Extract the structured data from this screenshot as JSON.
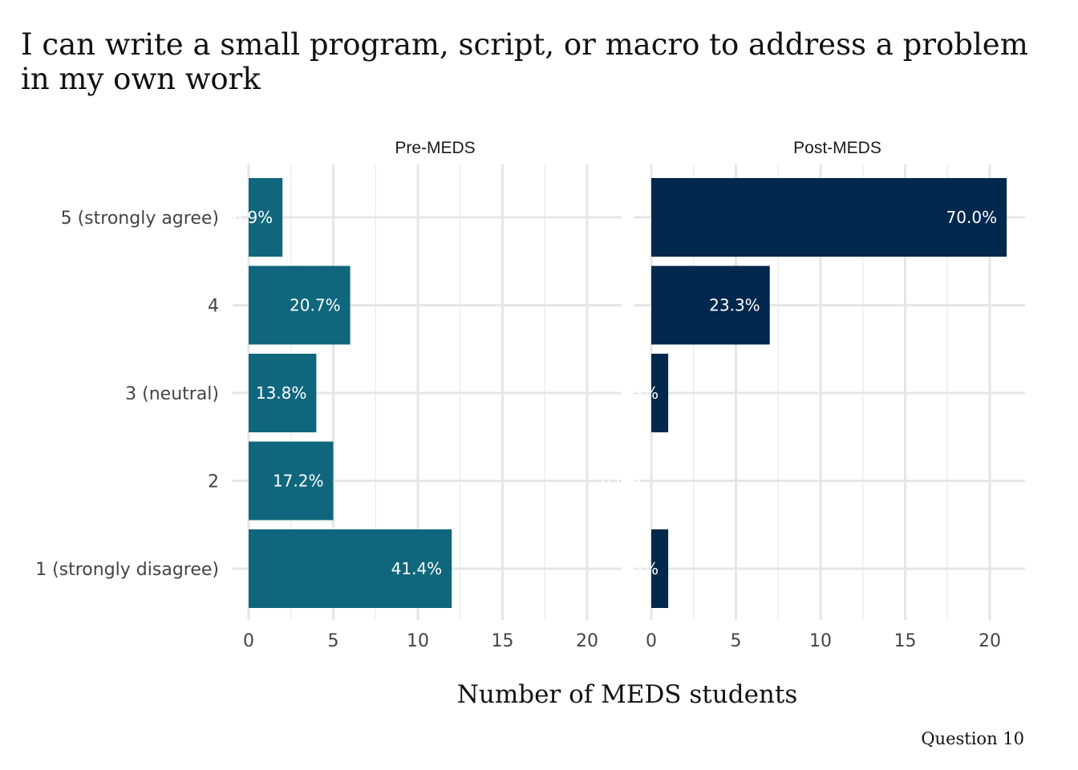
{
  "chart_data": {
    "type": "bar",
    "orientation": "horizontal",
    "title": "I can write a small program, script, or macro to address a problem in my own work",
    "title_lines": [
      "I can write a small program, script, or macro to address a problem",
      "in my own work"
    ],
    "xlabel": "Number of MEDS students",
    "ylabel": "",
    "caption": "Question 10",
    "categories": [
      "5 (strongly agree)",
      "4",
      "3 (neutral)",
      "2",
      "1 (strongly disagree)"
    ],
    "xlim": [
      0,
      22
    ],
    "xticks": [
      0,
      5,
      10,
      15,
      20
    ],
    "grid": true,
    "legend": "none",
    "panels": [
      {
        "name": "Pre-MEDS",
        "color": "#10677d",
        "values": [
          2,
          6,
          4,
          5,
          12
        ],
        "labels": [
          "6.9%",
          "20.7%",
          "13.8%",
          "17.2%",
          "41.4%"
        ]
      },
      {
        "name": "Post-MEDS",
        "color": "#03284d",
        "values": [
          21,
          7,
          1,
          0,
          1
        ],
        "labels": [
          "70.0%",
          "23.3%",
          "3.3%",
          "0.0%",
          "3.3%"
        ]
      }
    ]
  }
}
